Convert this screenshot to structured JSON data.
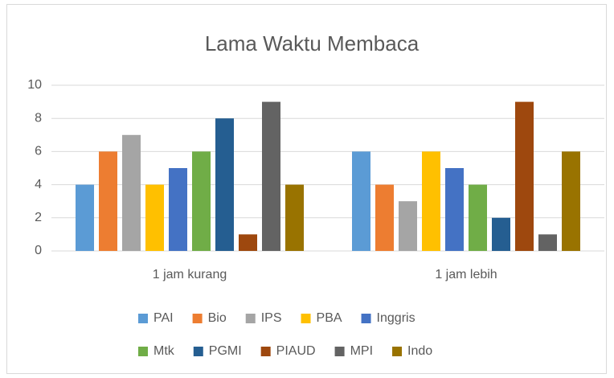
{
  "chart_data": {
    "type": "bar",
    "title": "Lama Waktu Membaca",
    "categories": [
      "1 jam kurang",
      "1 jam lebih"
    ],
    "series": [
      {
        "name": "PAI",
        "color": "#5b9bd5",
        "values": [
          4,
          6
        ]
      },
      {
        "name": "Bio",
        "color": "#ed7d31",
        "values": [
          6,
          4
        ]
      },
      {
        "name": "IPS",
        "color": "#a5a5a5",
        "values": [
          7,
          3
        ]
      },
      {
        "name": "PBA",
        "color": "#ffc000",
        "values": [
          4,
          6
        ]
      },
      {
        "name": "Inggris",
        "color": "#4472c4",
        "values": [
          5,
          5
        ]
      },
      {
        "name": "Mtk",
        "color": "#70ad47",
        "values": [
          6,
          4
        ]
      },
      {
        "name": "PGMI",
        "color": "#255e91",
        "values": [
          8,
          2
        ]
      },
      {
        "name": "PIAUD",
        "color": "#9e480e",
        "values": [
          1,
          9
        ]
      },
      {
        "name": "MPI",
        "color": "#636363",
        "values": [
          9,
          1
        ]
      },
      {
        "name": "Indo",
        "color": "#997300",
        "values": [
          4,
          6
        ]
      }
    ],
    "ylim": [
      0,
      10
    ],
    "yticks": [
      0,
      2,
      4,
      6,
      8,
      10
    ],
    "grid": true,
    "legend": "bottom"
  }
}
